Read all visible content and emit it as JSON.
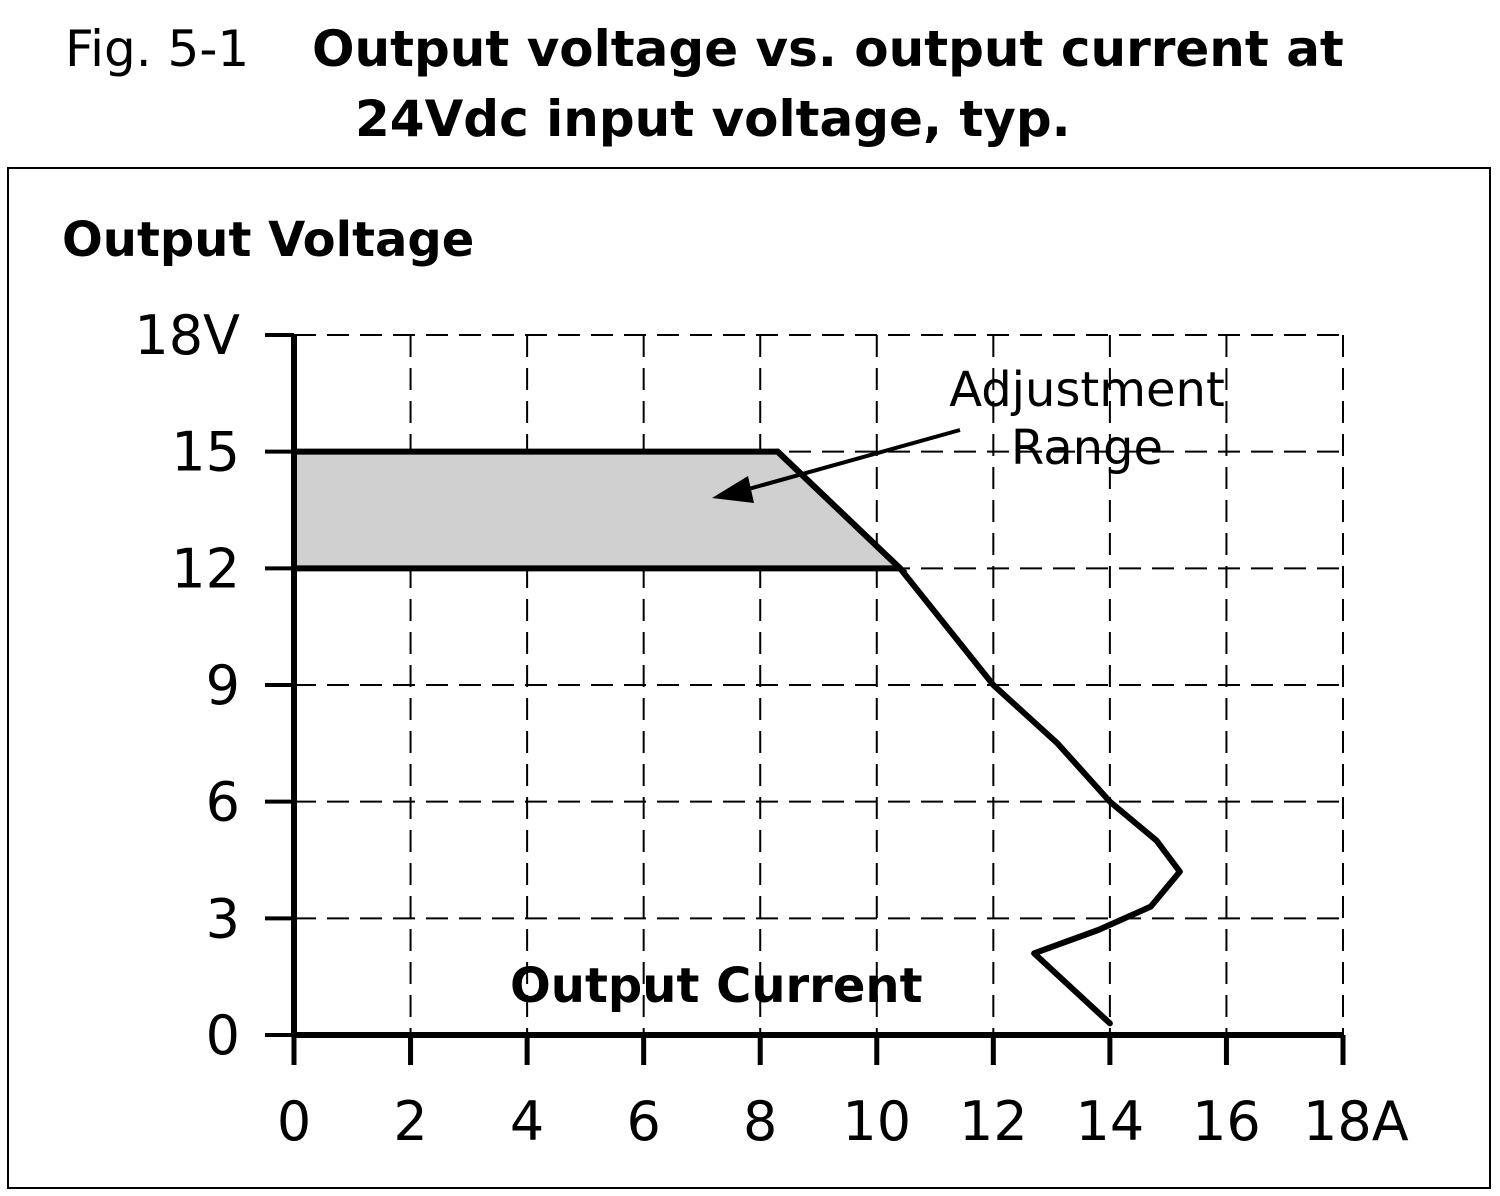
{
  "chart_data": {
    "type": "line",
    "figure_label": "Fig. 5-1",
    "title": [
      "Output voltage vs. output current at",
      "24Vdc input voltage, typ."
    ],
    "ylabel": "Output Voltage",
    "xlabel": "Output Current",
    "annotation": [
      "Adjustment",
      "Range"
    ],
    "xlim": [
      0,
      18
    ],
    "ylim": [
      0,
      18
    ],
    "xticks": [
      0,
      2,
      4,
      6,
      8,
      10,
      12,
      14,
      16,
      {
        "value": 18,
        "label": "18A"
      }
    ],
    "yticks": [
      0,
      3,
      6,
      9,
      12,
      15,
      {
        "value": 18,
        "label": "18V"
      }
    ],
    "grid": true,
    "shaded_region": {
      "color": "#d0d0d0",
      "x": [
        0,
        8.3,
        10.4,
        0
      ],
      "values": [
        15,
        15,
        12,
        12
      ]
    },
    "series": [
      {
        "color": "#000000",
        "x": [
          8.3,
          10.4,
          12.0,
          13.1,
          14.0,
          14.8,
          15.2,
          14.7,
          13.8,
          12.7,
          14.0
        ],
        "values": [
          15,
          12,
          9.0,
          7.5,
          6.0,
          5.0,
          4.2,
          3.3,
          2.7,
          2.1,
          0.3
        ]
      }
    ]
  }
}
